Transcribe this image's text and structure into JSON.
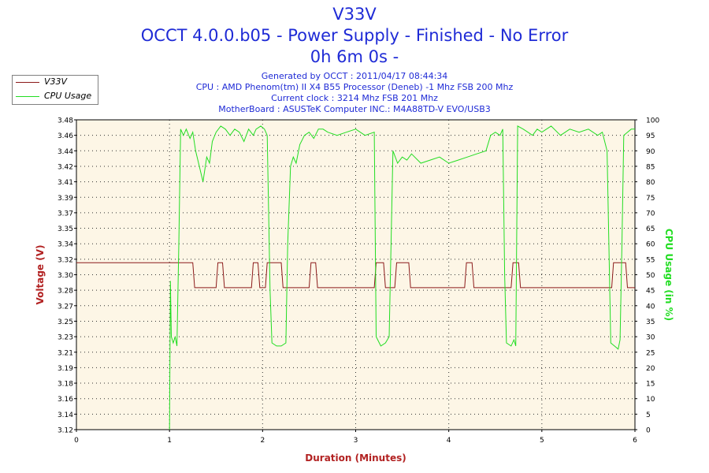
{
  "titles": [
    "V33V",
    "OCCT 4.0.0.b05 - Power Supply - Finished - No Error",
    "0h 6m 0s -"
  ],
  "info": [
    "Generated by OCCT : 2011/04/17 08:44:34",
    "CPU : AMD Phenom(tm) II X4 B55 Processor (Deneb) -1 Mhz FSB 200 Mhz",
    "Current clock : 3214 Mhz FSB 201 Mhz",
    "MotherBoard : ASUSTeK Computer INC.: M4A88TD-V EVO/USB3"
  ],
  "legend": [
    {
      "label": "V33V",
      "color": "#8b1a1a"
    },
    {
      "label": "CPU Usage",
      "color": "#22dd22"
    }
  ],
  "colors": {
    "voltage": "#8b1a1a",
    "cpu": "#22dd22",
    "plot_bg": "#fdf6e6",
    "title": "#1f2bd6"
  },
  "chart_data": {
    "type": "line",
    "xlabel": "Duration (Minutes)",
    "ylabel_left": "Voltage (V)",
    "ylabel_right": "CPU Usage (in %)",
    "xlim": [
      0,
      6
    ],
    "ylim_left": [
      3.12,
      3.48
    ],
    "ylim_right": [
      0,
      100
    ],
    "x_ticks": [
      "0",
      "1",
      "2",
      "3",
      "4",
      "5",
      "6"
    ],
    "y_left_ticks": [
      "3.12",
      "3.14",
      "3.16",
      "3.18",
      "3.19",
      "3.21",
      "3.23",
      "3.25",
      "3.27",
      "3.28",
      "3.30",
      "3.32",
      "3.34",
      "3.35",
      "3.37",
      "3.39",
      "3.41",
      "3.42",
      "3.44",
      "3.46",
      "3.48"
    ],
    "y_right_ticks": [
      "0",
      "5",
      "10",
      "15",
      "20",
      "25",
      "30",
      "35",
      "40",
      "45",
      "50",
      "55",
      "60",
      "65",
      "70",
      "75",
      "80",
      "85",
      "90",
      "95",
      "100"
    ],
    "grid": true,
    "series": [
      {
        "name": "V33V",
        "axis": "left",
        "points": [
          [
            0,
            3.314
          ],
          [
            1.25,
            3.314
          ],
          [
            1.27,
            3.285
          ],
          [
            1.5,
            3.285
          ],
          [
            1.52,
            3.314
          ],
          [
            1.57,
            3.314
          ],
          [
            1.59,
            3.285
          ],
          [
            1.88,
            3.285
          ],
          [
            1.9,
            3.314
          ],
          [
            1.95,
            3.314
          ],
          [
            1.97,
            3.285
          ],
          [
            2.03,
            3.285
          ],
          [
            2.05,
            3.314
          ],
          [
            2.2,
            3.314
          ],
          [
            2.22,
            3.285
          ],
          [
            2.5,
            3.285
          ],
          [
            2.52,
            3.314
          ],
          [
            2.57,
            3.314
          ],
          [
            2.59,
            3.285
          ],
          [
            3.2,
            3.285
          ],
          [
            3.22,
            3.314
          ],
          [
            3.3,
            3.314
          ],
          [
            3.32,
            3.285
          ],
          [
            3.42,
            3.285
          ],
          [
            3.44,
            3.314
          ],
          [
            3.57,
            3.314
          ],
          [
            3.59,
            3.285
          ],
          [
            4.17,
            3.285
          ],
          [
            4.19,
            3.314
          ],
          [
            4.25,
            3.314
          ],
          [
            4.27,
            3.285
          ],
          [
            4.67,
            3.285
          ],
          [
            4.69,
            3.314
          ],
          [
            4.75,
            3.314
          ],
          [
            4.77,
            3.285
          ],
          [
            5.75,
            3.285
          ],
          [
            5.77,
            3.314
          ],
          [
            5.9,
            3.314
          ],
          [
            5.92,
            3.285
          ],
          [
            6,
            3.285
          ]
        ]
      },
      {
        "name": "CPU Usage",
        "axis": "right",
        "points": [
          [
            1.0,
            0
          ],
          [
            1.01,
            48
          ],
          [
            1.02,
            30
          ],
          [
            1.04,
            28
          ],
          [
            1.06,
            30
          ],
          [
            1.08,
            27
          ],
          [
            1.1,
            60
          ],
          [
            1.12,
            97
          ],
          [
            1.15,
            95
          ],
          [
            1.18,
            97
          ],
          [
            1.22,
            94
          ],
          [
            1.25,
            96
          ],
          [
            1.28,
            90
          ],
          [
            1.32,
            85
          ],
          [
            1.36,
            80
          ],
          [
            1.4,
            88
          ],
          [
            1.43,
            86
          ],
          [
            1.46,
            93
          ],
          [
            1.5,
            96
          ],
          [
            1.55,
            98
          ],
          [
            1.6,
            97
          ],
          [
            1.65,
            95
          ],
          [
            1.7,
            97
          ],
          [
            1.75,
            96
          ],
          [
            1.8,
            93
          ],
          [
            1.85,
            97
          ],
          [
            1.9,
            95
          ],
          [
            1.93,
            97
          ],
          [
            1.98,
            98
          ],
          [
            2.02,
            97
          ],
          [
            2.05,
            95
          ],
          [
            2.08,
            45
          ],
          [
            2.1,
            28
          ],
          [
            2.15,
            27
          ],
          [
            2.2,
            27
          ],
          [
            2.25,
            28
          ],
          [
            2.27,
            60
          ],
          [
            2.3,
            85
          ],
          [
            2.33,
            88
          ],
          [
            2.36,
            86
          ],
          [
            2.4,
            92
          ],
          [
            2.45,
            95
          ],
          [
            2.5,
            96
          ],
          [
            2.55,
            94
          ],
          [
            2.6,
            97
          ],
          [
            2.65,
            97
          ],
          [
            2.7,
            96
          ],
          [
            2.8,
            95
          ],
          [
            2.9,
            96
          ],
          [
            3.0,
            97
          ],
          [
            3.1,
            95
          ],
          [
            3.2,
            96
          ],
          [
            3.22,
            30
          ],
          [
            3.27,
            27
          ],
          [
            3.32,
            28
          ],
          [
            3.36,
            30
          ],
          [
            3.38,
            60
          ],
          [
            3.4,
            90
          ],
          [
            3.45,
            86
          ],
          [
            3.5,
            88
          ],
          [
            3.55,
            87
          ],
          [
            3.6,
            89
          ],
          [
            3.7,
            86
          ],
          [
            3.8,
            87
          ],
          [
            3.9,
            88
          ],
          [
            4.0,
            86
          ],
          [
            4.1,
            87
          ],
          [
            4.2,
            88
          ],
          [
            4.3,
            89
          ],
          [
            4.4,
            90
          ],
          [
            4.45,
            95
          ],
          [
            4.5,
            96
          ],
          [
            4.55,
            95
          ],
          [
            4.58,
            97
          ],
          [
            4.6,
            50
          ],
          [
            4.62,
            28
          ],
          [
            4.67,
            27
          ],
          [
            4.7,
            29
          ],
          [
            4.72,
            27
          ],
          [
            4.74,
            98
          ],
          [
            4.8,
            97
          ],
          [
            4.85,
            96
          ],
          [
            4.9,
            95
          ],
          [
            4.95,
            97
          ],
          [
            5.0,
            96
          ],
          [
            5.1,
            98
          ],
          [
            5.2,
            95
          ],
          [
            5.3,
            97
          ],
          [
            5.4,
            96
          ],
          [
            5.5,
            97
          ],
          [
            5.6,
            95
          ],
          [
            5.65,
            96
          ],
          [
            5.7,
            90
          ],
          [
            5.72,
            60
          ],
          [
            5.74,
            28
          ],
          [
            5.78,
            27
          ],
          [
            5.82,
            26
          ],
          [
            5.84,
            29
          ],
          [
            5.86,
            60
          ],
          [
            5.88,
            95
          ],
          [
            5.92,
            96
          ],
          [
            5.96,
            97
          ],
          [
            6.0,
            97
          ]
        ]
      }
    ]
  }
}
